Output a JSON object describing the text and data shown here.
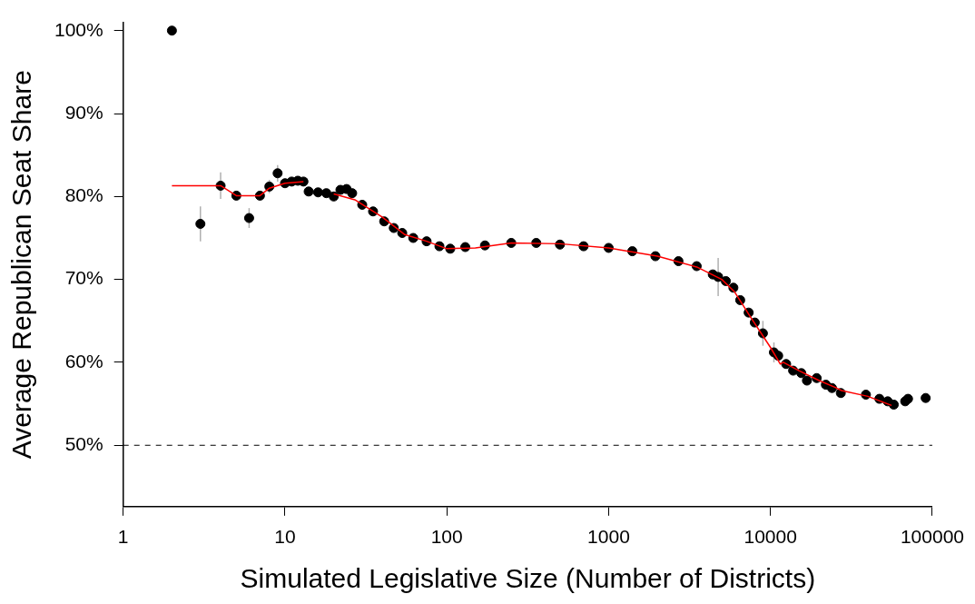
{
  "chart_data": {
    "type": "scatter",
    "xlabel": "Simulated Legislative Size (Number of Districts)",
    "ylabel": "Average Republican Seat Share",
    "log": "x",
    "grid": false,
    "legend": false,
    "xlim": [
      1,
      100000
    ],
    "xticks": [
      1,
      10,
      100,
      1000,
      10000,
      100000
    ],
    "ylim": [
      42.6,
      101
    ],
    "yticks": [
      {
        "value": 50,
        "label": "50%"
      },
      {
        "value": 60,
        "label": "60%"
      },
      {
        "value": 70,
        "label": "70%"
      },
      {
        "value": 80,
        "label": "80%"
      },
      {
        "value": 90,
        "label": "90%"
      },
      {
        "value": 100,
        "label": "100%"
      }
    ],
    "ref_lines": [
      {
        "axis": "y",
        "value": 50,
        "label": null,
        "color": "#000000",
        "line_style": "dashed"
      }
    ],
    "series": [
      {
        "marker": "circle",
        "color": "#000000",
        "x": [
          2,
          3,
          4,
          5,
          6,
          7,
          8,
          9,
          10,
          11,
          12,
          13,
          14,
          16,
          18,
          20,
          22,
          24,
          26,
          30,
          35,
          41,
          47,
          53,
          62,
          75,
          90,
          105,
          130,
          172,
          250,
          357,
          500,
          700,
          1000,
          1400,
          1945,
          2700,
          3500,
          4400,
          4750,
          5300,
          5900,
          6500,
          7330,
          8000,
          8980,
          10500,
          11160,
          12500,
          13800,
          15500,
          16800,
          19300,
          22000,
          24000,
          27200,
          38900,
          47100,
          53000,
          57800,
          68000,
          70800,
          91000
        ],
        "values": [
          100,
          76.7,
          81.3,
          80.1,
          77.4,
          80.1,
          81.2,
          82.8,
          81.6,
          81.8,
          81.9,
          81.8,
          80.6,
          80.5,
          80.4,
          80.0,
          80.8,
          80.9,
          80.4,
          79.0,
          78.2,
          77.0,
          76.2,
          75.6,
          75.0,
          74.6,
          74.0,
          73.7,
          73.9,
          74.1,
          74.4,
          74.4,
          74.2,
          74.0,
          73.8,
          73.4,
          72.8,
          72.2,
          71.6,
          70.6,
          70.3,
          69.8,
          69.0,
          67.5,
          66.0,
          64.8,
          63.5,
          61.2,
          60.8,
          59.8,
          59.0,
          58.7,
          57.8,
          58.1,
          57.3,
          56.9,
          56.3,
          56.1,
          55.6,
          55.3,
          54.9,
          55.3,
          55.6,
          55.7
        ],
        "errors": [
          null,
          2.1,
          1.6,
          null,
          1.2,
          null,
          0.8,
          1.0,
          null,
          null,
          null,
          null,
          null,
          null,
          null,
          null,
          null,
          null,
          null,
          null,
          null,
          null,
          null,
          null,
          null,
          null,
          null,
          null,
          null,
          null,
          null,
          null,
          null,
          null,
          null,
          null,
          null,
          null,
          null,
          null,
          2.3,
          null,
          null,
          null,
          null,
          null,
          1.5,
          1.2,
          null,
          null,
          null,
          null,
          null,
          null,
          null,
          null,
          null,
          null,
          null,
          null,
          null,
          null,
          null,
          null
        ]
      },
      {
        "type": "line",
        "marker": "none",
        "color": "#ff0000",
        "x": [
          2,
          4,
          5,
          7,
          8,
          10,
          13,
          14,
          20,
          27,
          40,
          55,
          75,
          100,
          150,
          250,
          500,
          1000,
          2000,
          3500,
          5000,
          6000,
          7500,
          10000,
          11500,
          12000,
          15000,
          20000,
          25000,
          27500,
          40000,
          56000
        ],
        "values": [
          81.3,
          81.3,
          80.1,
          80.1,
          81.0,
          81.6,
          81.8,
          null,
          80.3,
          79.6,
          77.5,
          75.4,
          74.6,
          73.7,
          73.8,
          74.4,
          74.3,
          73.8,
          72.8,
          71.5,
          70.0,
          68.5,
          65.5,
          61.8,
          59.8,
          60.0,
          59.0,
          57.8,
          57.0,
          56.6,
          55.9,
          54.8
        ]
      }
    ]
  }
}
